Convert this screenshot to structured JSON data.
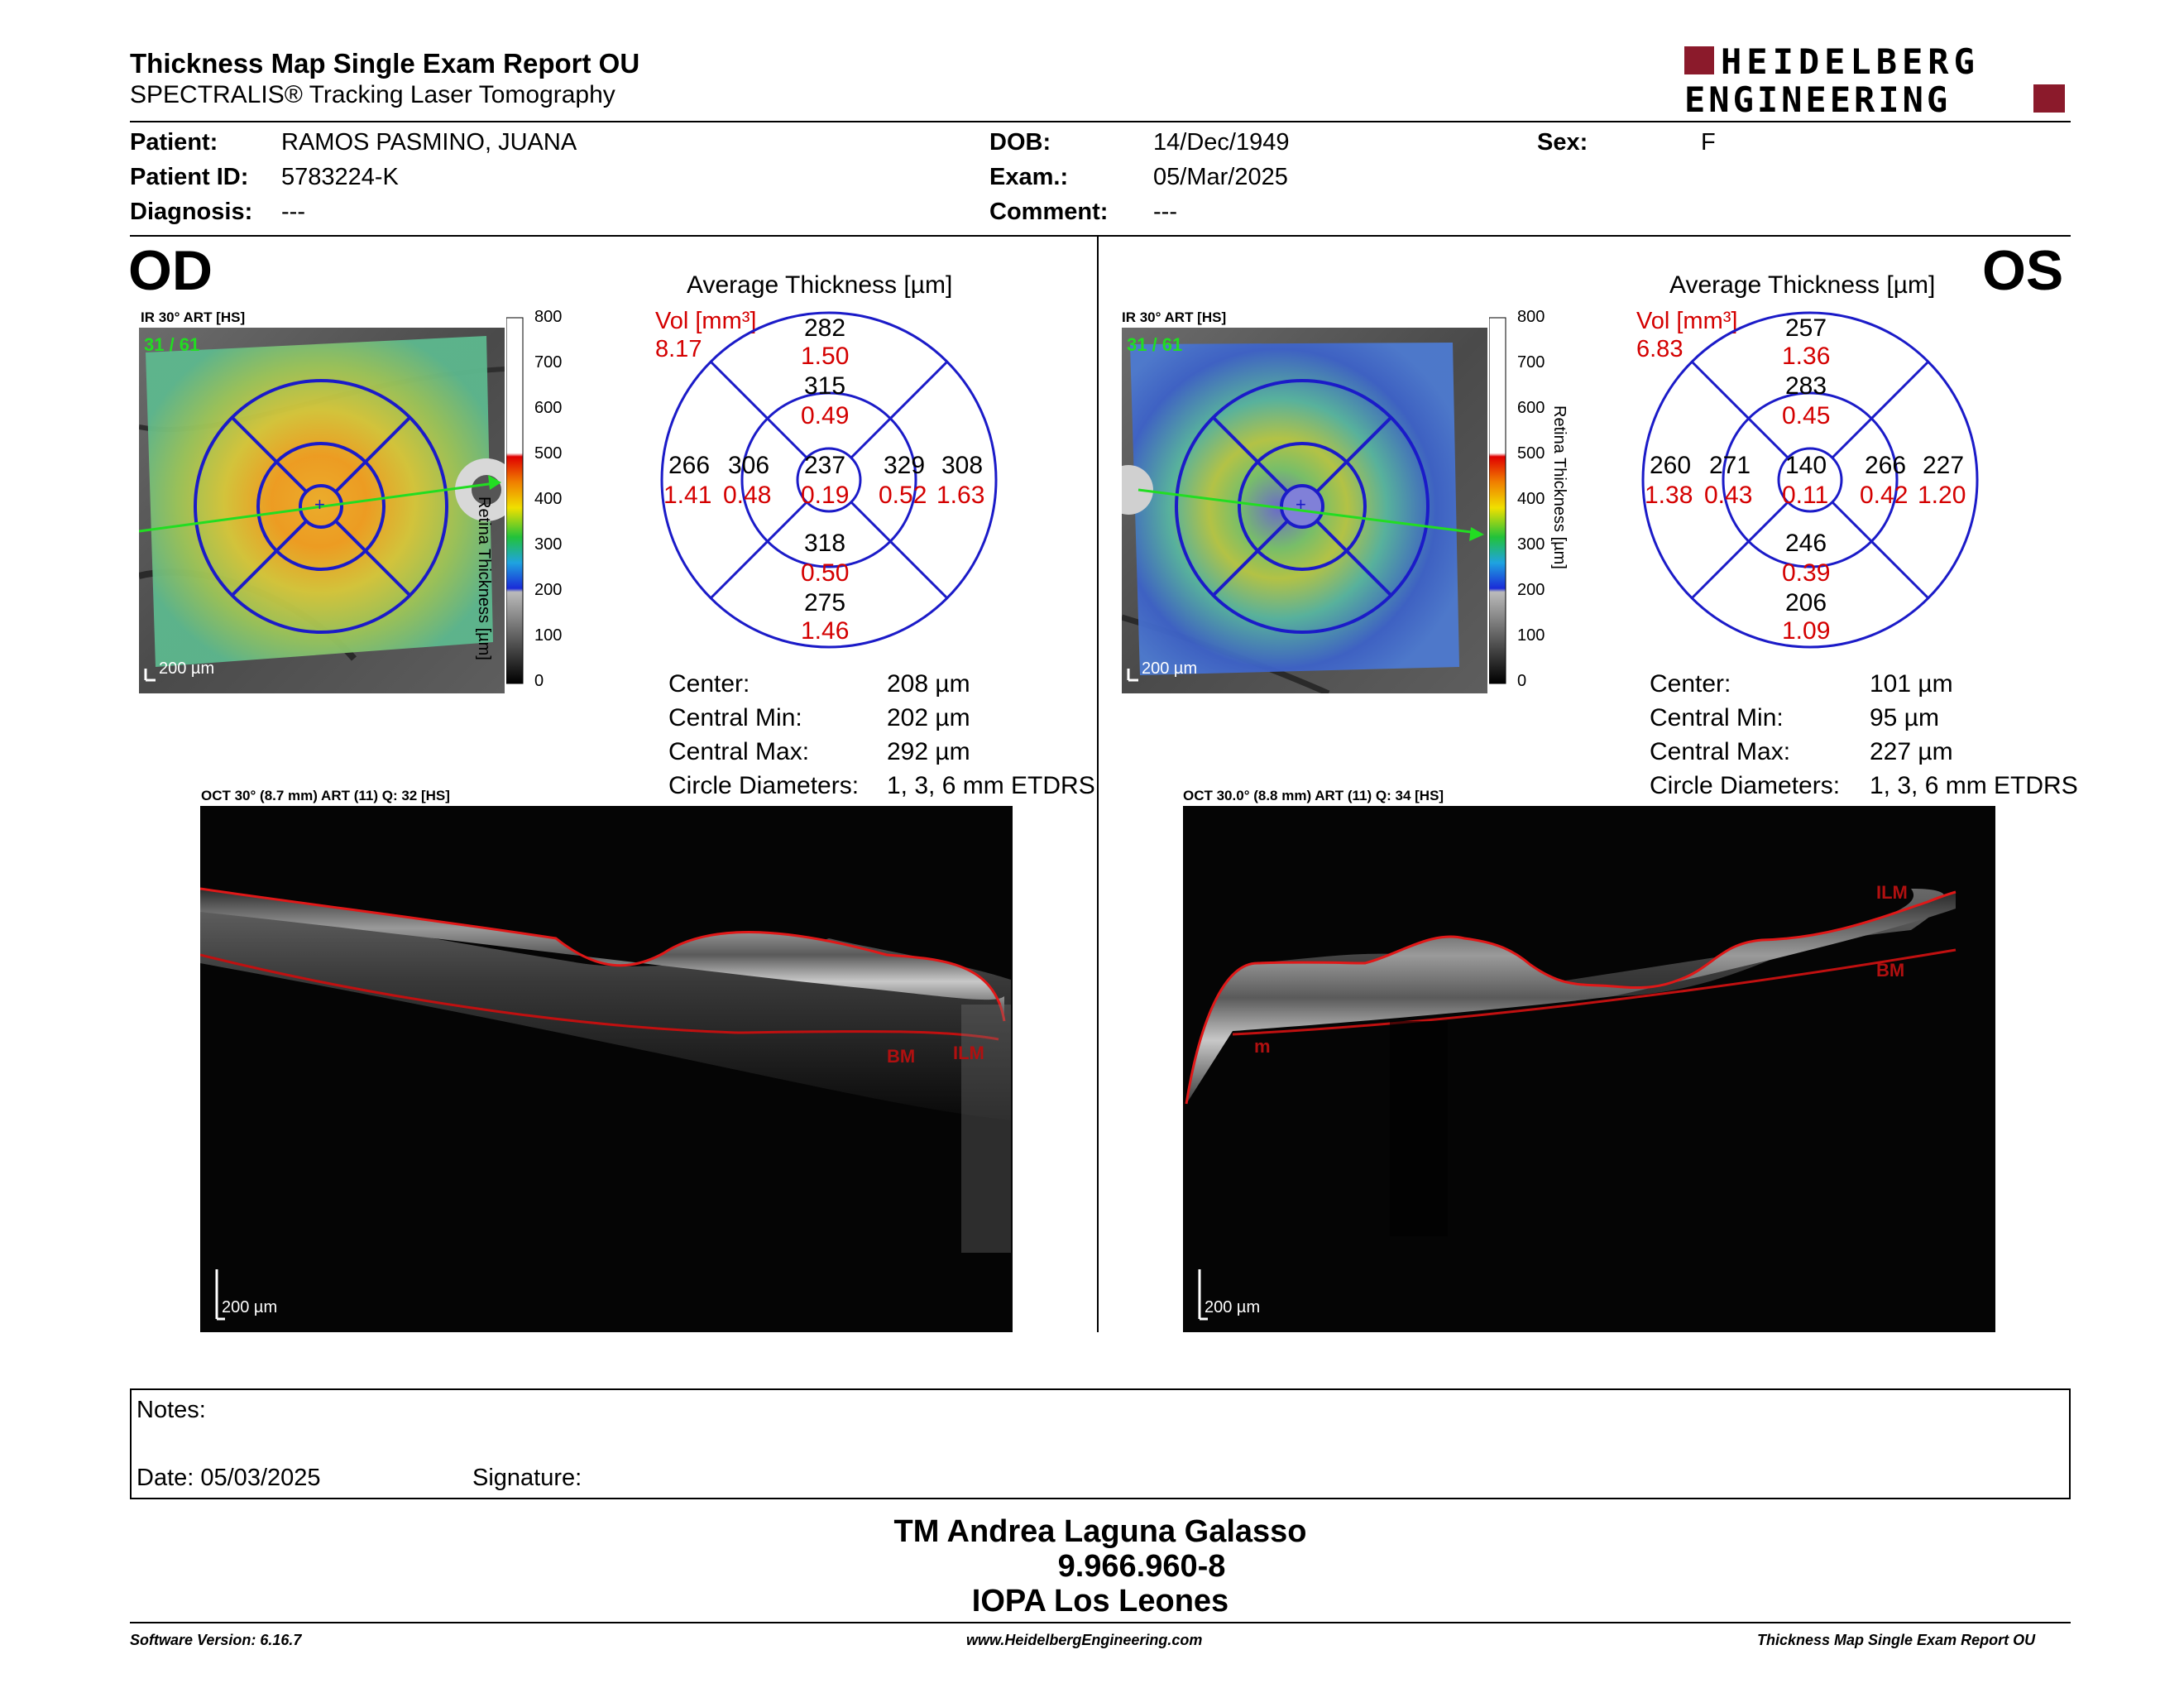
{
  "header": {
    "title": "Thickness Map Single Exam Report OU",
    "subtitle": "SPECTRALIS® Tracking Laser Tomography",
    "logo_line1": "HEIDELBERG",
    "logo_line2": "ENGINEERING",
    "brand_color": "#8b1a2b"
  },
  "patient": {
    "patient_label": "Patient:",
    "patient_value": "RAMOS PASMINO, JUANA",
    "id_label": "Patient ID:",
    "id_value": "5783224-K",
    "diagnosis_label": "Diagnosis:",
    "diagnosis_value": "---",
    "dob_label": "DOB:",
    "dob_value": "14/Dec/1949",
    "exam_label": "Exam.:",
    "exam_value": "05/Mar/2025",
    "comment_label": "Comment:",
    "comment_value": "---",
    "sex_label": "Sex:",
    "sex_value": "F"
  },
  "od": {
    "eye": "OD",
    "ir_caption": "IR 30° ART [HS]",
    "ir_counter": "31 / 61",
    "scale_bar": "200 µm",
    "scale_ticks": [
      "800",
      "700",
      "600",
      "500",
      "400",
      "300",
      "200",
      "100",
      "0"
    ],
    "scale_axis": "Retina Thickness [µm]",
    "avg_title": "Average Thickness [µm]",
    "vol_label": "Vol [mm³]",
    "vol_total": "8.17",
    "sectors": {
      "superior_outer": {
        "t": "282",
        "v": "1.50"
      },
      "superior_inner": {
        "t": "315",
        "v": "0.49"
      },
      "center": {
        "t": "237",
        "v": "0.19"
      },
      "temporal_outer": {
        "t": "266",
        "v": "1.41"
      },
      "temporal_inner": {
        "t": "306",
        "v": "0.48"
      },
      "nasal_inner": {
        "t": "329",
        "v": "0.52"
      },
      "nasal_outer": {
        "t": "308",
        "v": "1.63"
      },
      "inferior_inner": {
        "t": "318",
        "v": "0.50"
      },
      "inferior_outer": {
        "t": "275",
        "v": "1.46"
      }
    },
    "stats": [
      {
        "label": "Center:",
        "value": "208 µm"
      },
      {
        "label": "Central Min:",
        "value": "202 µm"
      },
      {
        "label": "Central Max:",
        "value": "292 µm"
      },
      {
        "label": "Circle Diameters:",
        "value": "1, 3, 6 mm ETDRS"
      }
    ],
    "oct_caption": "OCT 30° (8.7 mm) ART (11) Q: 32 [HS]",
    "oct_scale": "200 µm",
    "layer_labels": [
      "BM",
      "ILM"
    ]
  },
  "os": {
    "eye": "OS",
    "ir_caption": "IR 30° ART [HS]",
    "ir_counter": "31 / 61",
    "scale_bar": "200 µm",
    "scale_ticks": [
      "800",
      "700",
      "600",
      "500",
      "400",
      "300",
      "200",
      "100",
      "0"
    ],
    "scale_axis": "Retina Thickness [µm]",
    "avg_title": "Average Thickness [µm]",
    "vol_label": "Vol [mm³]",
    "vol_total": "6.83",
    "sectors": {
      "superior_outer": {
        "t": "257",
        "v": "1.36"
      },
      "superior_inner": {
        "t": "283",
        "v": "0.45"
      },
      "center": {
        "t": "140",
        "v": "0.11"
      },
      "temporal_outer": {
        "t": "260",
        "v": "1.38"
      },
      "temporal_inner": {
        "t": "271",
        "v": "0.43"
      },
      "nasal_inner": {
        "t": "266",
        "v": "0.42"
      },
      "nasal_outer": {
        "t": "227",
        "v": "1.20"
      },
      "inferior_inner": {
        "t": "246",
        "v": "0.39"
      },
      "inferior_outer": {
        "t": "206",
        "v": "1.09"
      }
    },
    "stats": [
      {
        "label": "Center:",
        "value": "101 µm"
      },
      {
        "label": "Central Min:",
        "value": "95 µm"
      },
      {
        "label": "Central Max:",
        "value": "227 µm"
      },
      {
        "label": "Circle Diameters:",
        "value": "1, 3, 6 mm ETDRS"
      }
    ],
    "oct_caption": "OCT 30.0° (8.8 mm) ART (11) Q: 34 [HS]",
    "oct_scale": "200 µm",
    "layer_labels": [
      "ILM",
      "BM",
      "m"
    ]
  },
  "notes": {
    "notes_label": "Notes:",
    "date_label": "Date: 05/03/2025",
    "signature_label": "Signature:"
  },
  "signatory": {
    "name": "TM Andrea Laguna Galasso",
    "id": "9.966.960-8",
    "institution": "IOPA Los Leones"
  },
  "footer": {
    "software": "Software Version: 6.16.7",
    "website": "www.HeidelbergEngineering.com",
    "report": "Thickness Map Single Exam Report OU"
  }
}
